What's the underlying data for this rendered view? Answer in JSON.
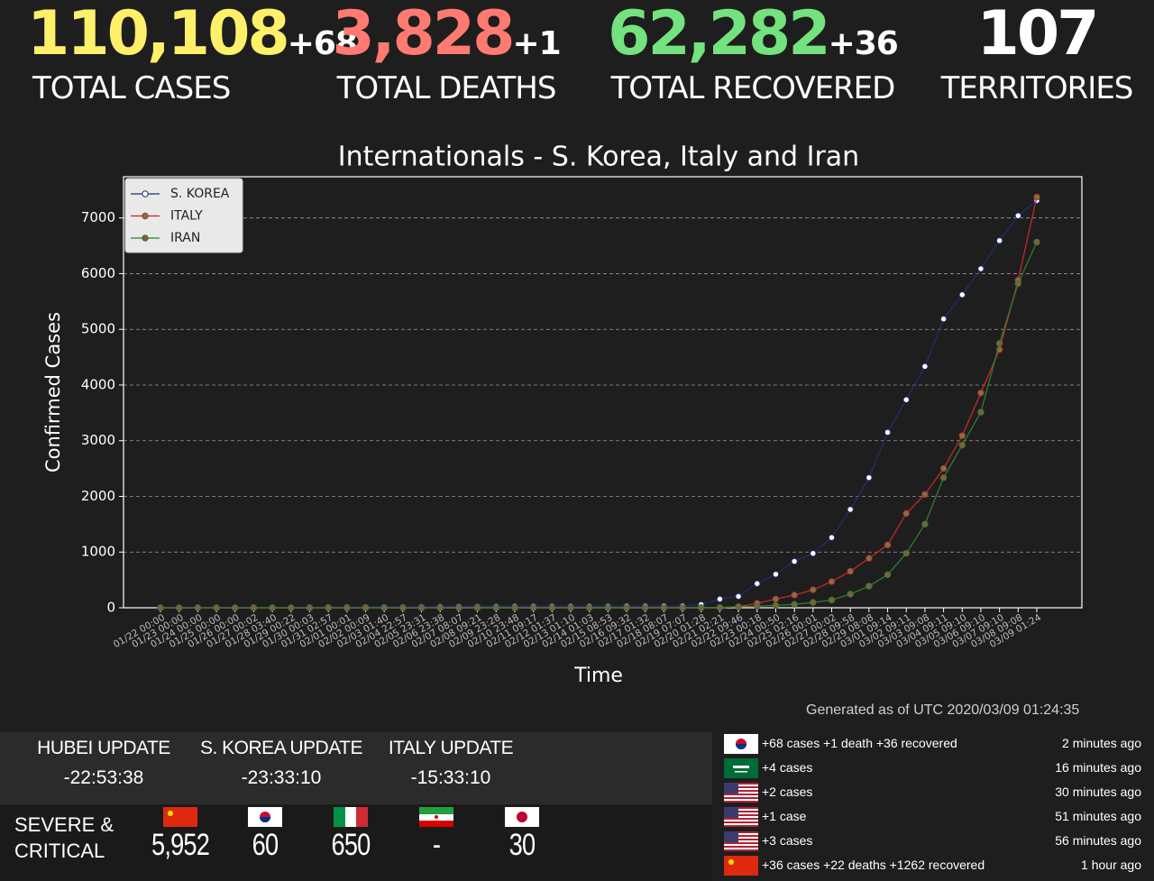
{
  "stats": [
    {
      "value": "110,108",
      "delta": "+68",
      "label": "TOTAL CASES"
    },
    {
      "value": "3,828",
      "delta": "+1",
      "label": "TOTAL DEATHS"
    },
    {
      "value": "62,282",
      "delta": "+36",
      "label": "TOTAL RECOVERED"
    },
    {
      "value": "107",
      "label": "TERRITORIES"
    }
  ],
  "chart_data": {
    "type": "line",
    "title": "Internationals - S. Korea, Italy and Iran",
    "x_label": "Time",
    "y_label": "Confirmed Cases",
    "categories": [
      "01/22 00:00",
      "01/23 00:00",
      "01/24 00:00",
      "01/25 00:00",
      "01/26 00:00",
      "01/27 00:02",
      "01/28 03:40",
      "01/29 00:22",
      "01/30 00:03",
      "01/31 02:57",
      "02/01 00:01",
      "02/02 00:09",
      "02/03 01:40",
      "02/04 22:57",
      "02/05 23:31",
      "02/06 23:38",
      "02/07 08:07",
      "02/08 09:21",
      "02/09 23:28",
      "02/10 23:48",
      "02/11 09:17",
      "02/12 01:37",
      "02/13 01:10",
      "02/14 01:03",
      "02/15 08:53",
      "02/16 09:32",
      "02/17 01:32",
      "02/18 08:07",
      "02/19 07:07",
      "02/20 01:28",
      "02/21 02:21",
      "02/22 09:46",
      "02/23 00:18",
      "02/24 00:50",
      "02/25 02:16",
      "02/26 00:01",
      "02/27 00:02",
      "02/28 09:58",
      "02/29 08:08",
      "03/01 09:14",
      "03/02 09:11",
      "03/03 09:08",
      "03/04 09:11",
      "03/05 09:10",
      "03/06 09:10",
      "03/07 09:10",
      "03/08 09:08",
      "03/09 01:24"
    ],
    "series": [
      {
        "name": "S. KOREA",
        "color": "#1f2f70",
        "marker_color": "#ffffff",
        "values": [
          1,
          1,
          2,
          2,
          3,
          4,
          4,
          4,
          4,
          11,
          12,
          15,
          15,
          16,
          19,
          23,
          24,
          24,
          25,
          27,
          28,
          28,
          28,
          28,
          28,
          29,
          30,
          31,
          31,
          58,
          156,
          204,
          433,
          602,
          833,
          977,
          1261,
          1766,
          2337,
          3150,
          3736,
          4335,
          5186,
          5621,
          6088,
          6593,
          7041,
          7313
        ]
      },
      {
        "name": "ITALY",
        "color": "#c62828",
        "marker_color": "#6f7a4a",
        "values": [
          0,
          0,
          0,
          0,
          0,
          0,
          0,
          0,
          0,
          2,
          2,
          2,
          2,
          2,
          2,
          2,
          3,
          3,
          3,
          3,
          3,
          3,
          3,
          3,
          3,
          3,
          3,
          3,
          3,
          3,
          3,
          20,
          79,
          157,
          229,
          323,
          470,
          655,
          889,
          1128,
          1694,
          2036,
          2502,
          3089,
          3858,
          4636,
          5883,
          7375
        ]
      },
      {
        "name": "IRAN",
        "color": "#2e7d32",
        "marker_color": "#8a5a3a",
        "values": [
          0,
          0,
          0,
          0,
          0,
          0,
          0,
          0,
          0,
          0,
          0,
          0,
          0,
          0,
          0,
          0,
          0,
          0,
          0,
          0,
          0,
          0,
          0,
          0,
          0,
          0,
          0,
          0,
          0,
          2,
          5,
          18,
          28,
          43,
          61,
          95,
          139,
          245,
          388,
          593,
          978,
          1501,
          2336,
          2922,
          3513,
          4747,
          5823,
          6566
        ]
      }
    ],
    "ylim": [
      0,
      7740
    ],
    "yticks": [
      0,
      1000,
      2000,
      3000,
      4000,
      5000,
      6000,
      7000
    ],
    "grid": true,
    "legend": "upper-left"
  },
  "generated": "Generated as of UTC 2020/03/09 01:24:35",
  "updates": [
    {
      "label": "HUBEI UPDATE",
      "time": "-22:53:38"
    },
    {
      "label": "S. KOREA UPDATE",
      "time": "-23:33:10"
    },
    {
      "label": "ITALY UPDATE",
      "time": "-15:33:10"
    }
  ],
  "severe": {
    "label": "SEVERE & CRITICAL",
    "counts": [
      "5,952",
      "60",
      "650",
      "-",
      "30"
    ]
  },
  "feed": [
    {
      "text": "+68 cases +1 death +36 recovered",
      "time": "2 minutes ago"
    },
    {
      "text": "+4 cases",
      "time": "16 minutes ago"
    },
    {
      "text": "+2 cases",
      "time": "30 minutes ago"
    },
    {
      "text": "+1 case",
      "time": "51 minutes ago"
    },
    {
      "text": "+3 cases",
      "time": "56 minutes ago"
    },
    {
      "text": "+36 cases +22 deaths +1262 recovered",
      "time": "1 hour ago"
    }
  ]
}
